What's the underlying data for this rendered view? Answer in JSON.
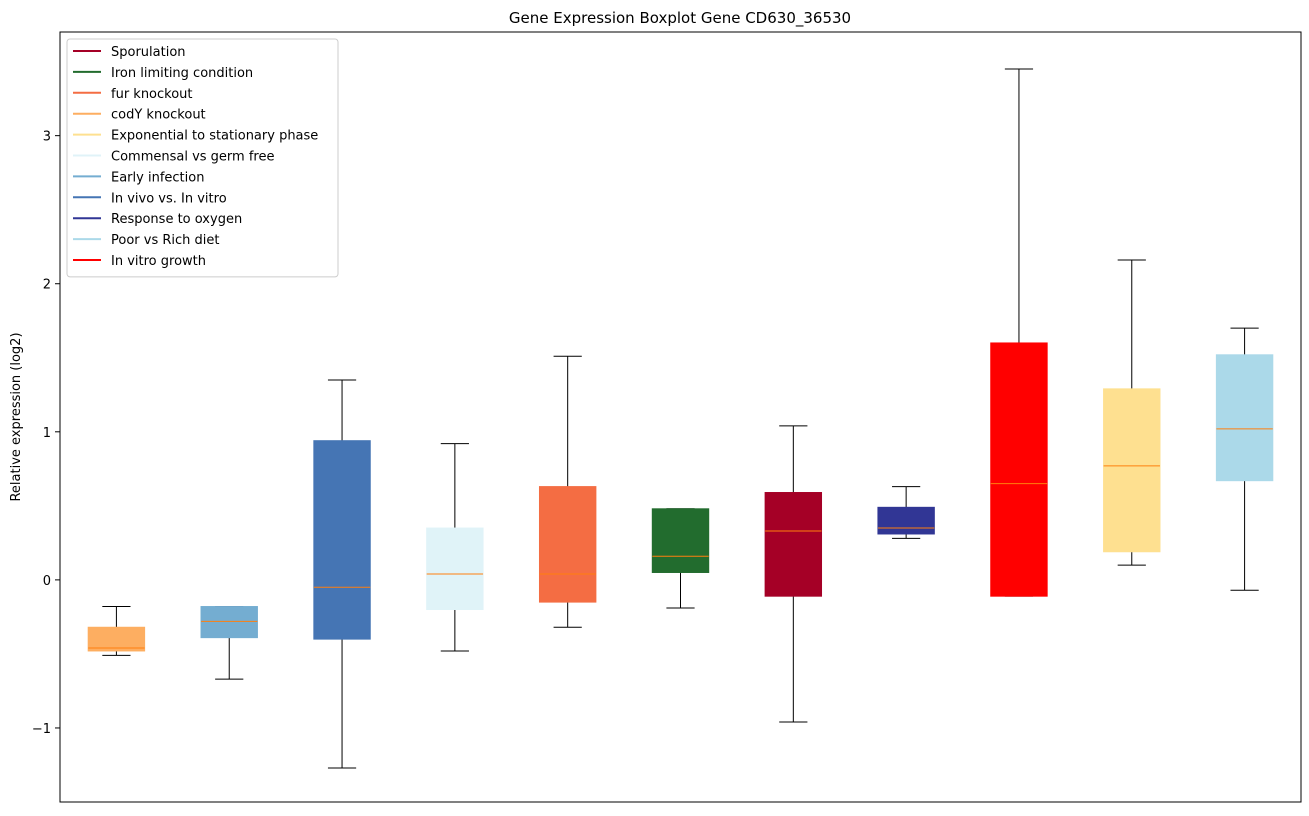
{
  "chart_data": {
    "type": "boxplot",
    "title": "Gene Expression Boxplot Gene CD630_36530",
    "xlabel": "",
    "ylabel": "Relative expression (log2)",
    "ylim": [
      -1.5,
      3.7
    ],
    "yticks": [
      {
        "value": -1,
        "label": "−1"
      },
      {
        "value": 0,
        "label": "0"
      },
      {
        "value": 1,
        "label": "1"
      },
      {
        "value": 2,
        "label": "2"
      },
      {
        "value": 3,
        "label": "3"
      }
    ],
    "grid": false,
    "legend_position": "top-left",
    "median_color": "#ff7f0e",
    "legend": [
      {
        "label": "Sporulation",
        "color": "#a50026"
      },
      {
        "label": "Iron limiting condition",
        "color": "#226c2e"
      },
      {
        "label": "fur knockout",
        "color": "#f46d43"
      },
      {
        "label": "codY knockout",
        "color": "#fdae61"
      },
      {
        "label": "Exponential to stationary phase",
        "color": "#fee090"
      },
      {
        "label": "Commensal vs germ free",
        "color": "#e0f3f8"
      },
      {
        "label": "Early infection",
        "color": "#74add1"
      },
      {
        "label": "In vivo vs. In vitro",
        "color": "#4575b4"
      },
      {
        "label": "Response to oxygen",
        "color": "#313695"
      },
      {
        "label": "Poor vs Rich diet",
        "color": "#abd9e9"
      },
      {
        "label": "In vitro growth",
        "color": "#ff0000"
      }
    ],
    "boxes": [
      {
        "series": "codY knockout",
        "color": "#fdae61",
        "whisker_low": -0.51,
        "q1": -0.48,
        "median": -0.46,
        "q3": -0.32,
        "whisker_high": -0.18
      },
      {
        "series": "Early infection",
        "color": "#74add1",
        "whisker_low": -0.67,
        "q1": -0.39,
        "median": -0.28,
        "q3": -0.18,
        "whisker_high": -0.18
      },
      {
        "series": "In vivo vs. In vitro",
        "color": "#4575b4",
        "whisker_low": -1.27,
        "q1": -0.4,
        "median": -0.05,
        "q3": 0.94,
        "whisker_high": 1.35
      },
      {
        "series": "Commensal vs germ free",
        "color": "#e0f3f8",
        "whisker_low": -0.48,
        "q1": -0.2,
        "median": 0.04,
        "q3": 0.35,
        "whisker_high": 0.92
      },
      {
        "series": "fur knockout",
        "color": "#f46d43",
        "whisker_low": -0.32,
        "q1": -0.15,
        "median": 0.04,
        "q3": 0.63,
        "whisker_high": 1.51
      },
      {
        "series": "Iron limiting condition",
        "color": "#226c2e",
        "whisker_low": -0.19,
        "q1": 0.05,
        "median": 0.16,
        "q3": 0.48,
        "whisker_high": 0.48
      },
      {
        "series": "Sporulation",
        "color": "#a50026",
        "whisker_low": -0.96,
        "q1": -0.11,
        "median": 0.33,
        "q3": 0.59,
        "whisker_high": 1.04
      },
      {
        "series": "Response to oxygen",
        "color": "#313695",
        "whisker_low": 0.28,
        "q1": 0.31,
        "median": 0.35,
        "q3": 0.49,
        "whisker_high": 0.63
      },
      {
        "series": "In vitro growth",
        "color": "#ff0000",
        "whisker_low": -0.11,
        "q1": -0.11,
        "median": 0.65,
        "q3": 1.6,
        "whisker_high": 3.45
      },
      {
        "series": "Exponential to stationary phase",
        "color": "#fee090",
        "whisker_low": 0.1,
        "q1": 0.19,
        "median": 0.77,
        "q3": 1.29,
        "whisker_high": 2.16
      },
      {
        "series": "Poor vs Rich diet",
        "color": "#abd9e9",
        "whisker_low": -0.07,
        "q1": 0.67,
        "median": 1.02,
        "q3": 1.52,
        "whisker_high": 1.7
      }
    ]
  }
}
